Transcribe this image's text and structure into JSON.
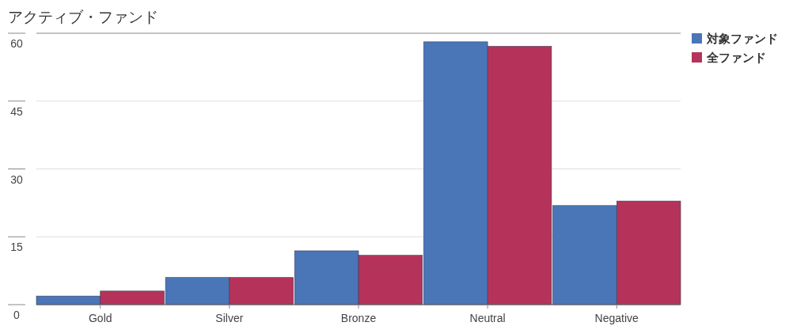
{
  "chart_data": {
    "type": "bar",
    "title": "アクティブ・ファンド",
    "categories": [
      "Gold",
      "Silver",
      "Bronze",
      "Neutral",
      "Negative"
    ],
    "series": [
      {
        "name": "対象ファンド",
        "color": "#4a76b8",
        "values": [
          1.9,
          6.0,
          11.9,
          58.1,
          21.9
        ]
      },
      {
        "name": "全ファンド",
        "color": "#b5335a",
        "values": [
          3.0,
          6.0,
          10.9,
          57.1,
          22.9
        ]
      }
    ],
    "ylim": [
      0,
      60
    ],
    "yticks": [
      0,
      15,
      30,
      45,
      60
    ],
    "grid": "y",
    "legend": "top right"
  }
}
